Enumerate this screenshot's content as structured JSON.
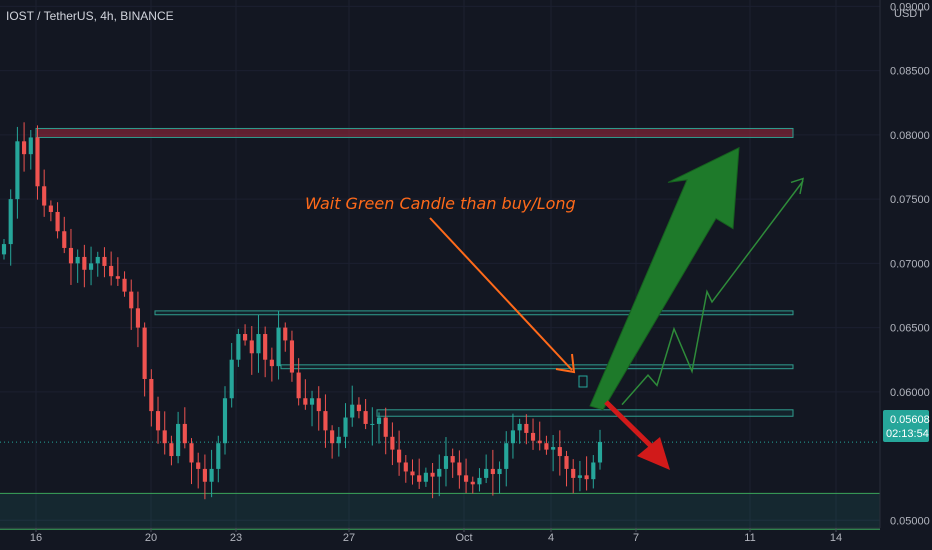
{
  "header": {
    "title": "IOST / TetherUS, 4h, BINANCE"
  },
  "price_axis": {
    "currency": "USDT",
    "ticks": [
      "0.09000",
      "0.08500",
      "0.08000",
      "0.07500",
      "0.07000",
      "0.06500",
      "0.06000",
      "0.05000"
    ],
    "last_price": "0.05608",
    "countdown": "02:13:54",
    "last_price_color": "#26a69a"
  },
  "time_axis": {
    "ticks": [
      "16",
      "20",
      "23",
      "27",
      "Oct",
      "4",
      "7",
      "11",
      "14"
    ]
  },
  "annotation": {
    "text": "Wait Green Candle  than buy/Long"
  },
  "colors": {
    "background": "#131722",
    "up": "#26a69a",
    "down": "#ef5350",
    "zone": "#2f9e8f",
    "bull_arrow": "#1e7a2a",
    "bear_arrow": "#d11a1a",
    "note": "#ff6a1a"
  },
  "chart_data": {
    "type": "candlestick",
    "symbol": "IOST/USDT",
    "interval": "4h",
    "exchange": "BINANCE",
    "ylim": [
      0.0494,
      0.0905
    ],
    "x_ticks": [
      "16",
      "20",
      "23",
      "27",
      "Oct",
      "4",
      "7",
      "11",
      "14"
    ],
    "close_path": [
      0.0715,
      0.075,
      0.0795,
      0.0785,
      0.0798,
      0.076,
      0.0745,
      0.074,
      0.0725,
      0.0712,
      0.07,
      0.0705,
      0.0695,
      0.07,
      0.0705,
      0.0698,
      0.069,
      0.0688,
      0.0678,
      0.0665,
      0.065,
      0.061,
      0.0585,
      0.057,
      0.056,
      0.055,
      0.0575,
      0.056,
      0.0545,
      0.054,
      0.053,
      0.054,
      0.056,
      0.0595,
      0.0625,
      0.0645,
      0.064,
      0.063,
      0.0645,
      0.0625,
      0.062,
      0.065,
      0.064,
      0.0615,
      0.0595,
      0.059,
      0.0595,
      0.0585,
      0.057,
      0.056,
      0.0565,
      0.058,
      0.059,
      0.0585,
      0.0575,
      0.0575,
      0.058,
      0.0565,
      0.0555,
      0.0545,
      0.0538,
      0.0535,
      0.053,
      0.0537,
      0.0534,
      0.054,
      0.055,
      0.0545,
      0.0535,
      0.053,
      0.0528,
      0.0533,
      0.054,
      0.0536,
      0.054,
      0.056,
      0.057,
      0.0575,
      0.0568,
      0.0562,
      0.056,
      0.0555,
      0.0557,
      0.055,
      0.054,
      0.0533,
      0.0535,
      0.0532,
      0.0545,
      0.0561
    ],
    "horizontal_zones": [
      {
        "label": "resistance",
        "price_high": 0.0805,
        "price_low": 0.0798,
        "color": "#ef5350"
      },
      {
        "label": "resistance",
        "price_high": 0.0663,
        "price_low": 0.066
      },
      {
        "label": "resistance",
        "price_high": 0.0621,
        "price_low": 0.0618
      },
      {
        "label": "resistance",
        "price_high": 0.0586,
        "price_low": 0.0581
      },
      {
        "label": "support",
        "price_high": 0.0521,
        "price_low": 0.0493
      }
    ],
    "annotations": [
      {
        "type": "text",
        "text": "Wait Green Candle  than buy/Long",
        "color": "#ff6a1a"
      },
      {
        "type": "arrow",
        "direction": "up",
        "color": "#1e7a2a",
        "meaning": "bullish target 0.0790"
      },
      {
        "type": "arrow",
        "direction": "down",
        "color": "#d11a1a",
        "meaning": "bearish target 0.0525"
      },
      {
        "type": "path",
        "shape": "zigzag up",
        "color": "#2e8b3a",
        "target": 0.0765
      }
    ]
  }
}
